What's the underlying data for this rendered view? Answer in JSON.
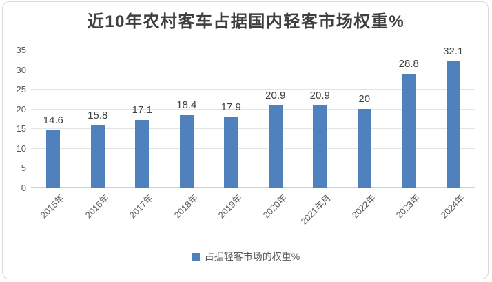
{
  "chart_data": {
    "type": "bar",
    "title": "近10年农村客车占据国内轻客市场权重%",
    "categories": [
      "2015年",
      "2016年",
      "2017年",
      "2018年",
      "2019年",
      "2020年",
      "2021年月",
      "2022年",
      "2023年",
      "2024年"
    ],
    "values": [
      14.6,
      15.8,
      17.1,
      18.4,
      17.9,
      20.9,
      20.9,
      20,
      28.8,
      32.1
    ],
    "series_name": "占据轻客市场的权重%",
    "xlabel": "",
    "ylabel": "",
    "ylim": [
      0,
      35
    ],
    "y_ticks": [
      0,
      5,
      10,
      15,
      20,
      25,
      30,
      35
    ],
    "grid": true,
    "data_labels": true,
    "legend_position": "bottom",
    "colors": {
      "bar": "#4f81bd",
      "gridline": "#e4e4e4",
      "axis_line": "#cfcfcf",
      "title_text": "#3f3f3f",
      "tick_text": "#595959",
      "value_label_text": "#404040",
      "frame_border": "#d9d9d9",
      "background": "#ffffff"
    }
  }
}
